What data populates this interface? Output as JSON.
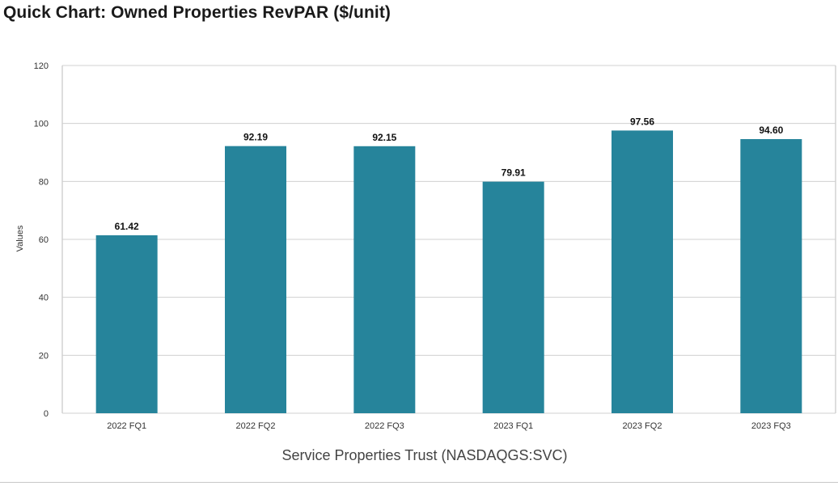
{
  "header": {
    "title": "Quick Chart: Owned Properties RevPAR ($/unit)"
  },
  "colors": {
    "bar": "#26849b",
    "grid": "#d0d0d0",
    "axis": "#bbbbbb"
  },
  "chart_data": {
    "type": "bar",
    "title": "Quick Chart: Owned Properties RevPAR ($/unit)",
    "xlabel": "Service Properties Trust (NASDAQGS:SVC)",
    "ylabel": "Values",
    "categories": [
      "2022 FQ1",
      "2022 FQ2",
      "2022 FQ3",
      "2023 FQ1",
      "2023 FQ2",
      "2023 FQ3"
    ],
    "values": [
      61.42,
      92.19,
      92.15,
      79.91,
      97.56,
      94.6
    ],
    "value_labels": [
      "61.42",
      "92.19",
      "92.15",
      "79.91",
      "97.56",
      "94.60"
    ],
    "ylim": [
      0,
      120
    ],
    "yticks": [
      0,
      20,
      40,
      60,
      80,
      100,
      120
    ],
    "grid": true,
    "legend": "none"
  }
}
